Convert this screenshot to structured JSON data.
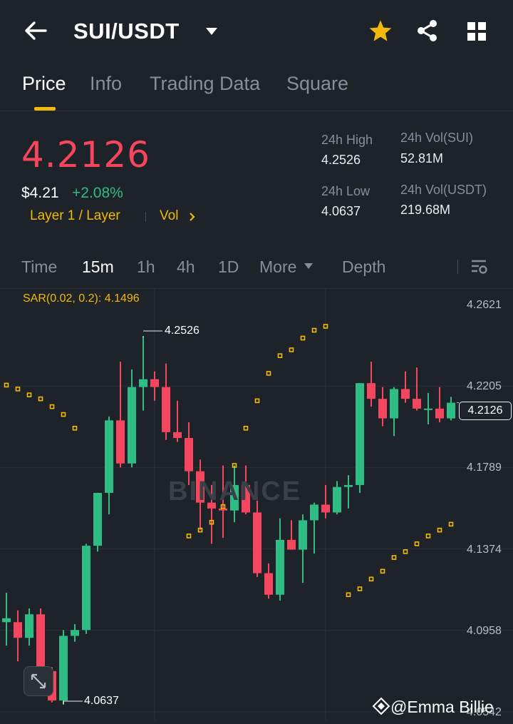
{
  "header": {
    "pair": "SUI/USDT"
  },
  "tabs": [
    "Price",
    "Info",
    "Trading Data",
    "Square"
  ],
  "ticker": {
    "last_price": "4.2126",
    "fiat_price": "$4.21",
    "change": "+2.08%",
    "tag": "Layer 1 / Layer",
    "vol_link": "Vol",
    "high_label": "24h High",
    "high": "4.2526",
    "low_label": "24h Low",
    "low": "4.0637",
    "vol_sui_label": "24h Vol(SUI)",
    "vol_sui": "52.81M",
    "vol_usdt_label": "24h Vol(USDT)",
    "vol_usdt": "219.68M"
  },
  "intervals": [
    "Time",
    "15m",
    "1h",
    "4h",
    "1D",
    "More",
    "Depth"
  ],
  "chart": {
    "sar_label": "SAR(0.02, 0.2): 4.1496",
    "y_ticks": [
      "4.2621",
      "4.2205",
      "4.1789",
      "4.1374",
      "4.0958",
      "4.0542"
    ],
    "current_price": "4.2126",
    "high_annot": "4.2526",
    "low_annot": "4.0637",
    "watermark": "BINANCE"
  },
  "credit": "@Emma Billie",
  "colors": {
    "up": "#2ebd85",
    "down": "#f6465d",
    "accent": "#f0b90b",
    "bg": "#1e2329"
  },
  "chart_data": {
    "type": "candlestick",
    "interval": "15m",
    "ylim": [
      4.0542,
      4.2621
    ],
    "candles": [
      {
        "o": 4.1,
        "h": 4.115,
        "l": 4.088,
        "c": 4.102
      },
      {
        "o": 4.1,
        "h": 4.106,
        "l": 4.08,
        "c": 4.092
      },
      {
        "o": 4.092,
        "h": 4.107,
        "l": 4.088,
        "c": 4.104
      },
      {
        "o": 4.104,
        "h": 4.107,
        "l": 4.07,
        "c": 4.075
      },
      {
        "o": 4.075,
        "h": 4.077,
        "l": 4.059,
        "c": 4.06
      },
      {
        "o": 4.06,
        "h": 4.096,
        "l": 4.058,
        "c": 4.093
      },
      {
        "o": 4.093,
        "h": 4.099,
        "l": 4.09,
        "c": 4.096
      },
      {
        "o": 4.096,
        "h": 4.14,
        "l": 4.094,
        "c": 4.139
      },
      {
        "o": 4.139,
        "h": 4.166,
        "l": 4.136,
        "c": 4.166
      },
      {
        "o": 4.166,
        "h": 4.205,
        "l": 4.155,
        "c": 4.203
      },
      {
        "o": 4.203,
        "h": 4.233,
        "l": 4.179,
        "c": 4.181
      },
      {
        "o": 4.181,
        "h": 4.229,
        "l": 4.179,
        "c": 4.22
      },
      {
        "o": 4.22,
        "h": 4.246,
        "l": 4.208,
        "c": 4.224
      },
      {
        "o": 4.224,
        "h": 4.228,
        "l": 4.213,
        "c": 4.22
      },
      {
        "o": 4.22,
        "h": 4.232,
        "l": 4.193,
        "c": 4.197
      },
      {
        "o": 4.197,
        "h": 4.213,
        "l": 4.192,
        "c": 4.194
      },
      {
        "o": 4.194,
        "h": 4.202,
        "l": 4.17,
        "c": 4.177
      },
      {
        "o": 4.177,
        "h": 4.183,
        "l": 4.147,
        "c": 4.161
      },
      {
        "o": 4.161,
        "h": 4.17,
        "l": 4.14,
        "c": 4.158
      },
      {
        "o": 4.158,
        "h": 4.18,
        "l": 4.143,
        "c": 4.157
      },
      {
        "o": 4.157,
        "h": 4.18,
        "l": 4.151,
        "c": 4.17
      },
      {
        "o": 4.17,
        "h": 4.18,
        "l": 4.155,
        "c": 4.156
      },
      {
        "o": 4.156,
        "h": 4.162,
        "l": 4.123,
        "c": 4.125
      },
      {
        "o": 4.125,
        "h": 4.13,
        "l": 4.112,
        "c": 4.114
      },
      {
        "o": 4.114,
        "h": 4.153,
        "l": 4.111,
        "c": 4.142
      },
      {
        "o": 4.142,
        "h": 4.152,
        "l": 4.138,
        "c": 4.137
      },
      {
        "o": 4.137,
        "h": 4.155,
        "l": 4.12,
        "c": 4.152
      },
      {
        "o": 4.152,
        "h": 4.161,
        "l": 4.135,
        "c": 4.16
      },
      {
        "o": 4.16,
        "h": 4.17,
        "l": 4.153,
        "c": 4.156
      },
      {
        "o": 4.156,
        "h": 4.172,
        "l": 4.155,
        "c": 4.169
      },
      {
        "o": 4.169,
        "h": 4.175,
        "l": 4.158,
        "c": 4.17
      },
      {
        "o": 4.17,
        "h": 4.222,
        "l": 4.166,
        "c": 4.222
      },
      {
        "o": 4.222,
        "h": 4.233,
        "l": 4.21,
        "c": 4.214
      },
      {
        "o": 4.214,
        "h": 4.22,
        "l": 4.2,
        "c": 4.204
      },
      {
        "o": 4.204,
        "h": 4.22,
        "l": 4.195,
        "c": 4.219
      },
      {
        "o": 4.219,
        "h": 4.228,
        "l": 4.212,
        "c": 4.214
      },
      {
        "o": 4.214,
        "h": 4.23,
        "l": 4.208,
        "c": 4.209
      },
      {
        "o": 4.209,
        "h": 4.217,
        "l": 4.201,
        "c": 4.209
      },
      {
        "o": 4.209,
        "h": 4.22,
        "l": 4.202,
        "c": 4.204
      },
      {
        "o": 4.204,
        "h": 4.215,
        "l": 4.203,
        "c": 4.212
      }
    ],
    "sar": [
      4.221,
      4.219,
      4.216,
      4.214,
      4.21,
      4.206,
      4.199,
      null,
      null,
      null,
      null,
      null,
      null,
      null,
      null,
      null,
      4.144,
      4.147,
      4.151,
      4.159,
      4.18,
      4.199,
      4.213,
      4.227,
      4.236,
      4.239,
      4.245,
      4.249,
      4.251,
      null,
      4.114,
      4.117,
      4.122,
      4.126,
      4.133,
      4.136,
      4.14,
      4.144,
      4.147,
      4.15
    ]
  }
}
